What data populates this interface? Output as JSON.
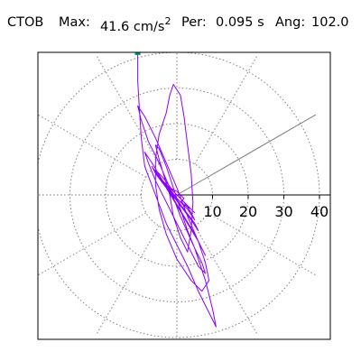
{
  "header": {
    "station": "CTOB",
    "max_label": "Max:",
    "max_value": "41.6 cm/s",
    "max_exponent": "2",
    "period_label": "Per:",
    "period_value": "0.095 s",
    "angle_label": "Ang:",
    "angle_value": "102.0"
  },
  "colors": {
    "trace": "#8b00ff",
    "grid": "#7f7f7f",
    "axis": "#000000",
    "marker": "#009966",
    "frame": "#000000"
  },
  "chart_data": {
    "type": "polar-particle-motion",
    "title": "",
    "radial_range": [
      0,
      45
    ],
    "radial_ticks": [
      10,
      20,
      30,
      40
    ],
    "radial_tick_labels": [
      "10",
      "20",
      "30",
      "40"
    ],
    "grid_circles": [
      10,
      20,
      30,
      40
    ],
    "grid_spoke_angles_deg": [
      0,
      30,
      60,
      90,
      120,
      150,
      180,
      210,
      240,
      270,
      300,
      330
    ],
    "direction_line": {
      "angle_deg": 30,
      "radius": 45
    },
    "max_marker": {
      "x": -11,
      "y": 40
    },
    "trace_points": [
      [
        -11,
        40
      ],
      [
        -11,
        32
      ],
      [
        -10.5,
        24
      ],
      [
        -10,
        16
      ],
      [
        -9,
        8
      ],
      [
        -6,
        0
      ],
      [
        -3,
        -8
      ],
      [
        0,
        -14
      ],
      [
        3,
        -20
      ],
      [
        6,
        -27
      ],
      [
        9,
        -33
      ],
      [
        11,
        -37
      ],
      [
        10,
        -32
      ],
      [
        8,
        -24
      ],
      [
        5,
        -15
      ],
      [
        1,
        -6
      ],
      [
        -2,
        2
      ],
      [
        -5,
        9
      ],
      [
        -8,
        15
      ],
      [
        -10,
        21
      ],
      [
        -11,
        25
      ],
      [
        -9,
        22
      ],
      [
        -6,
        16
      ],
      [
        -3,
        9
      ],
      [
        0,
        2
      ],
      [
        3,
        -6
      ],
      [
        6,
        -13
      ],
      [
        8,
        -19
      ],
      [
        9,
        -24
      ],
      [
        7,
        -27
      ],
      [
        4,
        -24
      ],
      [
        0,
        -18
      ],
      [
        -3,
        -11
      ],
      [
        -5,
        -4
      ],
      [
        -6,
        3
      ],
      [
        -6,
        10
      ],
      [
        -5,
        17
      ],
      [
        -3,
        23
      ],
      [
        -2,
        28
      ],
      [
        -1,
        31
      ],
      [
        1,
        28
      ],
      [
        2,
        22
      ],
      [
        3,
        14
      ],
      [
        4,
        6
      ],
      [
        4.5,
        -2
      ],
      [
        4,
        -10
      ],
      [
        3,
        -16
      ],
      [
        1,
        -12
      ],
      [
        -1,
        -6
      ],
      [
        -2,
        0
      ],
      [
        -3.5,
        5
      ],
      [
        -5,
        10
      ],
      [
        -6,
        14
      ],
      [
        -5,
        13
      ],
      [
        -3,
        8
      ],
      [
        -1,
        2
      ],
      [
        1,
        -4
      ],
      [
        3,
        -10
      ],
      [
        5,
        -15
      ],
      [
        7,
        -19
      ],
      [
        8,
        -22
      ],
      [
        6,
        -20
      ],
      [
        3,
        -14
      ],
      [
        0,
        -8
      ],
      [
        -3,
        -2
      ],
      [
        -6,
        4
      ],
      [
        -8,
        9
      ],
      [
        -9,
        12
      ],
      [
        -7,
        9
      ],
      [
        -4,
        4
      ],
      [
        -1,
        -1
      ],
      [
        2,
        -6
      ],
      [
        5,
        -11
      ],
      [
        7,
        -15
      ],
      [
        8,
        -17
      ],
      [
        6,
        -13
      ],
      [
        3,
        -8
      ],
      [
        0,
        -3
      ],
      [
        -3,
        2
      ],
      [
        -6,
        6
      ],
      [
        -7,
        8
      ],
      [
        -5,
        5
      ],
      [
        -2,
        1
      ],
      [
        1,
        -3
      ],
      [
        4,
        -7
      ],
      [
        6,
        -10
      ],
      [
        5,
        -8
      ],
      [
        2,
        -4
      ],
      [
        -1,
        0
      ],
      [
        -4,
        4
      ],
      [
        -6,
        7
      ],
      [
        -4,
        5
      ],
      [
        -1,
        1
      ],
      [
        2,
        -2
      ],
      [
        4,
        -5
      ],
      [
        5,
        -7
      ],
      [
        3,
        -4
      ],
      [
        0,
        -1
      ],
      [
        -3,
        3
      ],
      [
        -5,
        5
      ],
      [
        -3,
        3
      ],
      [
        0,
        0
      ],
      [
        3,
        -3
      ],
      [
        5,
        -5
      ],
      [
        3,
        -3
      ],
      [
        1,
        -1
      ],
      [
        -2,
        2
      ],
      [
        -4,
        4
      ],
      [
        -2,
        1
      ],
      [
        1,
        -2
      ],
      [
        4,
        -4
      ],
      [
        2,
        -2
      ],
      [
        -1,
        1
      ],
      [
        -3,
        3
      ],
      [
        -1,
        0
      ],
      [
        2,
        -3
      ],
      [
        3,
        -3
      ],
      [
        0,
        0
      ],
      [
        -2,
        2
      ],
      [
        0,
        1
      ],
      [
        2,
        -1
      ],
      [
        1,
        -2
      ],
      [
        -1,
        0
      ],
      [
        0,
        0
      ]
    ]
  }
}
